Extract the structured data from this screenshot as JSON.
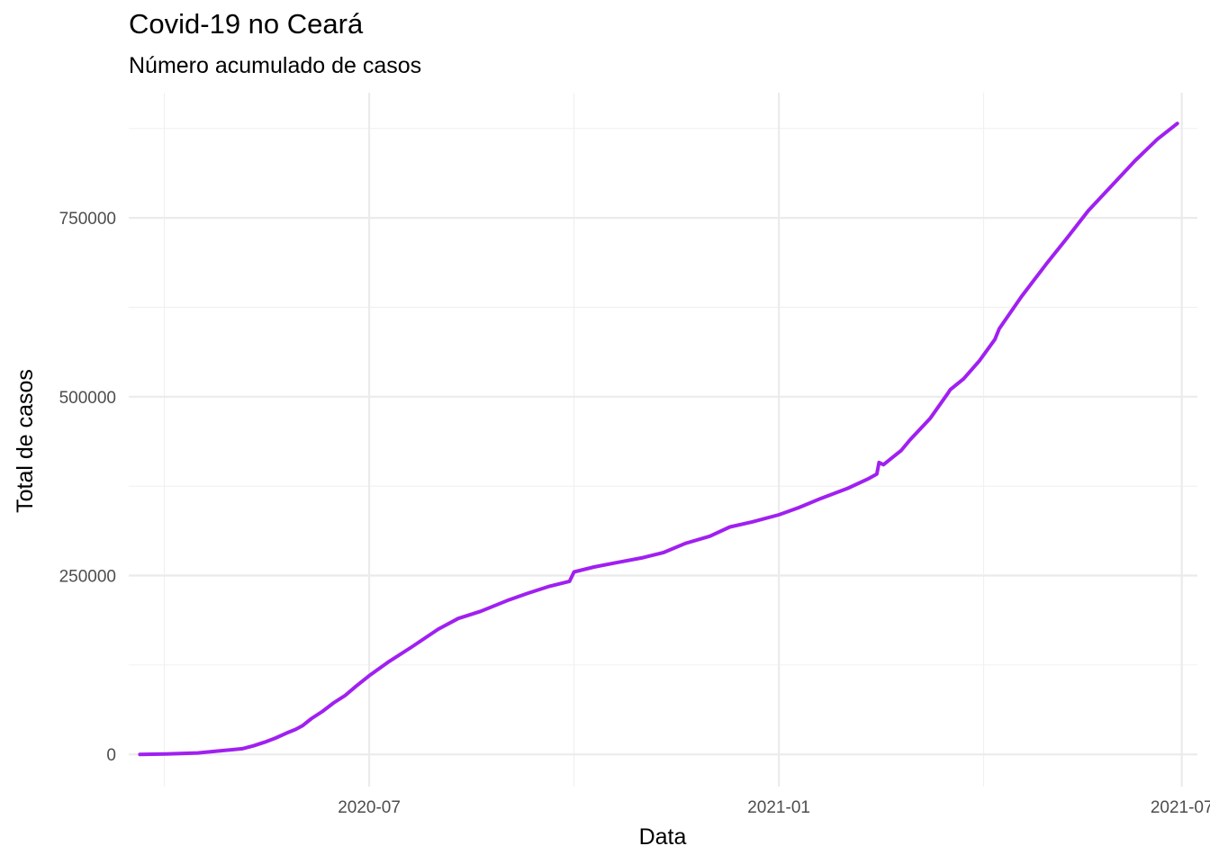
{
  "chart_data": {
    "type": "line",
    "title": "Covid-19 no Ceará",
    "subtitle": "Número acumulado de casos",
    "xlabel": "Data",
    "ylabel": "Total de casos",
    "x_ticks": [
      {
        "date": "2020-07-01",
        "label": "2020-07"
      },
      {
        "date": "2021-01-01",
        "label": "2021-01"
      },
      {
        "date": "2021-07-01",
        "label": "2021-07"
      }
    ],
    "y_ticks": [
      {
        "value": 0,
        "label": "0"
      },
      {
        "value": 250000,
        "label": "250000"
      },
      {
        "value": 500000,
        "label": "500000"
      },
      {
        "value": 750000,
        "label": "750000"
      }
    ],
    "xlim": [
      "2020-03-15",
      "2021-07-08"
    ],
    "ylim": [
      -45000,
      925000
    ],
    "grid": true,
    "line_color": "#a020f0",
    "series": [
      {
        "x": [
          "2020-03-20",
          "2020-04-01",
          "2020-04-15",
          "2020-04-25",
          "2020-05-05",
          "2020-05-10",
          "2020-05-15",
          "2020-05-20",
          "2020-05-25",
          "2020-05-29",
          "2020-06-01",
          "2020-06-05",
          "2020-06-10",
          "2020-06-15",
          "2020-06-20",
          "2020-06-25",
          "2020-07-01",
          "2020-07-10",
          "2020-07-20",
          "2020-08-01",
          "2020-08-10",
          "2020-08-20",
          "2020-09-01",
          "2020-09-10",
          "2020-09-20",
          "2020-09-29",
          "2020-10-01",
          "2020-10-10",
          "2020-10-20",
          "2020-11-01",
          "2020-11-10",
          "2020-11-20",
          "2020-12-01",
          "2020-12-10",
          "2020-12-20",
          "2021-01-01",
          "2021-01-10",
          "2021-01-20",
          "2021-02-01",
          "2021-02-10",
          "2021-02-14",
          "2021-02-15",
          "2021-02-17",
          "2021-02-25",
          "2021-03-01",
          "2021-03-10",
          "2021-03-18",
          "2021-03-19",
          "2021-03-25",
          "2021-04-01",
          "2021-04-08",
          "2021-04-10",
          "2021-04-20",
          "2021-05-01",
          "2021-05-10",
          "2021-05-20",
          "2021-06-01",
          "2021-06-10",
          "2021-06-20",
          "2021-06-29"
        ],
        "values": [
          0,
          500,
          2000,
          5000,
          8000,
          12000,
          17000,
          23000,
          30000,
          35000,
          40000,
          50000,
          60000,
          72000,
          82000,
          95000,
          110000,
          130000,
          150000,
          175000,
          190000,
          200000,
          215000,
          225000,
          235000,
          242000,
          255000,
          262000,
          268000,
          275000,
          282000,
          295000,
          305000,
          318000,
          325000,
          335000,
          345000,
          358000,
          372000,
          385000,
          392000,
          408000,
          405000,
          425000,
          440000,
          470000,
          505000,
          510000,
          525000,
          550000,
          580000,
          595000,
          640000,
          685000,
          720000,
          760000,
          800000,
          830000,
          860000,
          882000
        ]
      }
    ]
  }
}
